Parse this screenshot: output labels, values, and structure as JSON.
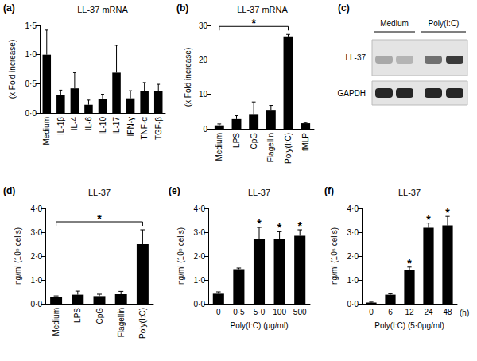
{
  "chart_data": [
    {
      "type": "bar",
      "panel": "(a)",
      "title": "LL-37 mRNA",
      "ylabel": "(x Fold increase)",
      "categories": [
        "Medium",
        "IL-1β",
        "IL-4",
        "IL-6",
        "IL-10",
        "IL-17",
        "IFN-γ",
        "TNF-α",
        "TGF-β"
      ],
      "values": [
        1.0,
        0.31,
        0.42,
        0.14,
        0.24,
        0.69,
        0.25,
        0.38,
        0.37
      ],
      "errors": [
        0.42,
        0.08,
        0.27,
        0.08,
        0.08,
        0.47,
        0.13,
        0.14,
        0.12
      ],
      "color": "#000000",
      "ylim": [
        0,
        1.5
      ],
      "yticks": [
        {
          "value": 0,
          "label": "0·0"
        },
        {
          "value": 0.5,
          "label": "0·5"
        },
        {
          "value": 1,
          "label": "1·0"
        },
        {
          "value": 1.5,
          "label": "1·5"
        }
      ],
      "grid": false
    },
    {
      "type": "bar",
      "panel": "(b)",
      "title": "LL-37 mRNA",
      "ylabel": "(x Fold increase)",
      "categories": [
        "Medium",
        "LPS",
        "CpG",
        "Flagellin",
        "Poly(I:C)",
        "fMLP"
      ],
      "values": [
        1.0,
        2.8,
        4.3,
        5.5,
        26.8,
        1.6
      ],
      "errors": [
        0.4,
        1.0,
        3.5,
        1.3,
        0.6,
        0.2
      ],
      "color": "#000000",
      "ylim": [
        0,
        30
      ],
      "yticks": [
        0,
        10,
        20,
        30
      ],
      "grid": false,
      "annotations": [
        {
          "text": "*",
          "from": "Medium",
          "to": "Poly(I:C)"
        }
      ]
    },
    {
      "type": "bar",
      "panel": "(d)",
      "title": "LL-37",
      "ylabel": "ng/ml (10⁵ cells)",
      "categories": [
        "Medium",
        "LPS",
        "CpG",
        "Flagellin",
        "Poly(I:C)"
      ],
      "values": [
        0.28,
        0.38,
        0.32,
        0.4,
        2.5
      ],
      "errors": [
        0.05,
        0.15,
        0.08,
        0.12,
        0.6
      ],
      "color": "#000000",
      "ylim": [
        0,
        4
      ],
      "yticks": [
        {
          "value": 0,
          "label": "0·0"
        },
        {
          "value": 1,
          "label": "1·0"
        },
        {
          "value": 2,
          "label": "2·0"
        },
        {
          "value": 3,
          "label": "3·0"
        },
        {
          "value": 4,
          "label": "4·0"
        }
      ],
      "grid": false,
      "annotations": [
        {
          "text": "*",
          "from": "Medium",
          "to": "Poly(I:C)"
        }
      ]
    },
    {
      "type": "bar",
      "panel": "(e)",
      "title": "LL-37",
      "ylabel": "ng/ml (10⁵ cells)",
      "xlabel": "Poly(I:C) (μg/ml)",
      "categories": [
        "0",
        "0·5",
        "5·0",
        "100",
        "500"
      ],
      "values": [
        0.42,
        1.45,
        2.7,
        2.72,
        2.85
      ],
      "errors": [
        0.08,
        0.05,
        0.5,
        0.3,
        0.25
      ],
      "color": "#000000",
      "ylim": [
        0,
        4
      ],
      "yticks": [
        {
          "value": 0,
          "label": "0·0"
        },
        {
          "value": 1,
          "label": "1·0"
        },
        {
          "value": 2,
          "label": "2·0"
        },
        {
          "value": 3,
          "label": "3·0"
        },
        {
          "value": 4,
          "label": "4·0"
        }
      ],
      "grid": false,
      "annotations": [
        {
          "text": "*",
          "at": "5·0"
        },
        {
          "text": "*",
          "at": "100"
        },
        {
          "text": "*",
          "at": "500"
        }
      ]
    },
    {
      "type": "bar",
      "panel": "(f)",
      "title": "LL-37",
      "ylabel": "ng/ml (10⁵ cells)",
      "xlabel": "Poly(I:C) (5·0μg/ml)",
      "xunit": "(h)",
      "categories": [
        "0",
        "6",
        "12",
        "24",
        "48"
      ],
      "values": [
        0.05,
        0.38,
        1.42,
        3.18,
        3.28
      ],
      "errors": [
        0.02,
        0.04,
        0.12,
        0.2,
        0.38
      ],
      "color": "#000000",
      "ylim": [
        0,
        4
      ],
      "yticks": [
        {
          "value": 0,
          "label": "0·0"
        },
        {
          "value": 1,
          "label": "1·0"
        },
        {
          "value": 2,
          "label": "2·0"
        },
        {
          "value": 3,
          "label": "3·0"
        },
        {
          "value": 4,
          "label": "4·0"
        }
      ],
      "grid": false,
      "annotations": [
        {
          "text": "*",
          "at": "12"
        },
        {
          "text": "*",
          "at": "24"
        },
        {
          "text": "*",
          "at": "48"
        }
      ]
    }
  ],
  "blot": {
    "panel": "(c)",
    "groups": [
      "Medium",
      "Poly(I:C)"
    ],
    "rows": [
      "LL-37",
      "GAPDH"
    ]
  }
}
